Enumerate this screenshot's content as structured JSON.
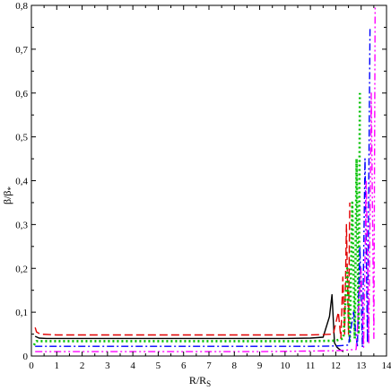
{
  "chart_data": {
    "type": "line",
    "title": "",
    "xlabel": "R/R",
    "xlabel_sub": "S",
    "ylabel": "β/β",
    "ylabel_sub": "*",
    "xlim": [
      0,
      14
    ],
    "ylim": [
      0,
      0.8
    ],
    "x_ticks": [
      0,
      1,
      2,
      3,
      4,
      5,
      6,
      7,
      8,
      9,
      10,
      11,
      12,
      13,
      14
    ],
    "x_tick_labels": [
      "0",
      "1",
      "2",
      "3",
      "4",
      "5",
      "6",
      "7",
      "8",
      "9",
      "10",
      "11",
      "12",
      "13",
      "14"
    ],
    "y_ticks": [
      0,
      0.1,
      0.2,
      0.3,
      0.4,
      0.5,
      0.6,
      0.7,
      0.8
    ],
    "y_tick_labels": [
      "0",
      "0,1",
      "0,2",
      "0,3",
      "0,4",
      "0,5",
      "0,6",
      "0,7",
      "0,8"
    ],
    "grid": false,
    "legend": "none",
    "series": [
      {
        "color": "#000000",
        "dash": "solid",
        "x": [
          0.15,
          0.3,
          0.6,
          1,
          2,
          4,
          6,
          8,
          10,
          11,
          11.5,
          11.75,
          11.85,
          11.95,
          12.05,
          12.15,
          12.3
        ],
        "y": [
          0.045,
          0.041,
          0.04,
          0.04,
          0.04,
          0.04,
          0.04,
          0.04,
          0.04,
          0.041,
          0.043,
          0.09,
          0.14,
          0.03,
          0.02,
          0.015,
          0.01
        ]
      },
      {
        "color": "#e00000",
        "dash": "long-dash",
        "x": [
          0.15,
          0.2,
          0.35,
          0.7,
          1,
          2,
          4,
          6,
          8,
          10,
          11,
          11.5,
          11.9,
          12.1,
          12.2,
          12.28,
          12.35,
          12.42,
          12.5,
          12.55
        ],
        "y": [
          0.065,
          0.055,
          0.05,
          0.049,
          0.048,
          0.048,
          0.048,
          0.048,
          0.048,
          0.048,
          0.048,
          0.049,
          0.05,
          0.1,
          0.04,
          0.18,
          0.05,
          0.3,
          0.05,
          0.35
        ]
      },
      {
        "color": "#00c000",
        "dash": "dotted",
        "x": [
          0.1,
          0.2,
          0.4,
          1,
          2,
          4,
          6,
          8,
          10,
          11,
          12,
          12.3,
          12.45,
          12.55,
          12.65,
          12.75,
          12.82,
          12.9,
          12.95
        ],
        "y": [
          0.025,
          0.034,
          0.034,
          0.034,
          0.034,
          0.034,
          0.034,
          0.034,
          0.034,
          0.034,
          0.035,
          0.04,
          0.2,
          0.03,
          0.35,
          0.04,
          0.45,
          0.05,
          0.6
        ]
      },
      {
        "color": "#0000ff",
        "dash": "dash-dot",
        "x": [
          0.15,
          0.3,
          1,
          2,
          4,
          6,
          8,
          10,
          11,
          12,
          12.5,
          12.7,
          12.85,
          12.95,
          13.05,
          13.15,
          13.25,
          13.35
        ],
        "y": [
          0.022,
          0.022,
          0.022,
          0.022,
          0.022,
          0.022,
          0.022,
          0.022,
          0.022,
          0.023,
          0.025,
          0.1,
          0.02,
          0.25,
          0.02,
          0.45,
          0.03,
          0.75
        ]
      },
      {
        "color": "#ff00ff",
        "dash": "dash-dot-dot",
        "x": [
          0.15,
          1,
          3,
          6,
          9,
          12,
          12.8,
          13.0,
          13.1,
          13.2,
          13.3,
          13.4,
          13.5,
          13.55
        ],
        "y": [
          0.01,
          0.01,
          0.01,
          0.01,
          0.01,
          0.012,
          0.015,
          0.2,
          0.02,
          0.4,
          0.03,
          0.6,
          0.04,
          0.8
        ]
      }
    ]
  }
}
